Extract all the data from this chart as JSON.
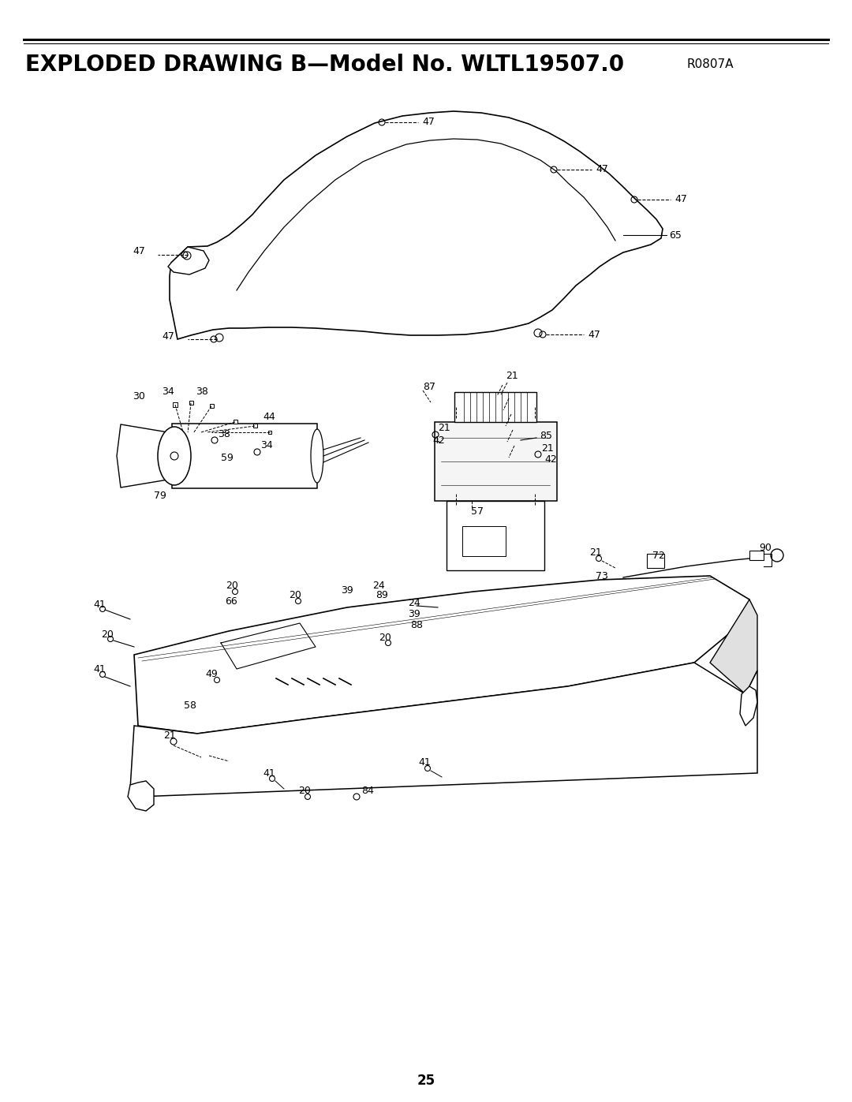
{
  "title_main": "EXPLODED DRAWING B—Model No. WLTL19507.0",
  "title_sub": "R0807A",
  "page_number": "25",
  "bg": "#ffffff",
  "lc": "#000000",
  "title_fs": 20,
  "sub_fs": 11,
  "label_fs": 9,
  "page_fs": 12
}
